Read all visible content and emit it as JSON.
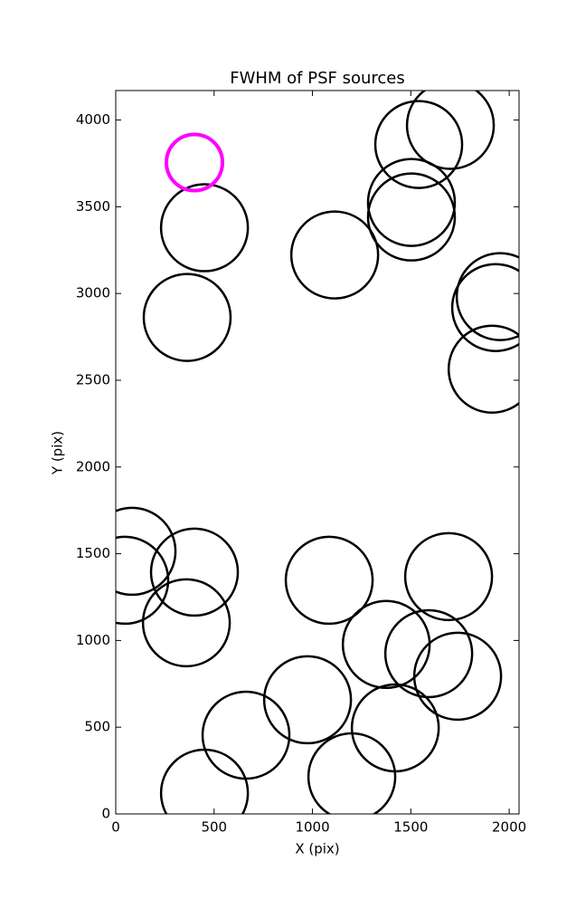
{
  "chart_data": {
    "type": "scatter",
    "title": "FWHM of PSF sources",
    "x_label": "X (pix)",
    "y_label": "Y (pix)",
    "xlim": [
      0,
      2050
    ],
    "ylim": [
      0,
      4170
    ],
    "xticks": [
      0,
      500,
      1000,
      1500,
      2000
    ],
    "yticks": [
      0,
      500,
      1000,
      1500,
      2000,
      2500,
      3000,
      3500,
      4000
    ],
    "series": [
      {
        "color": "#000000",
        "x": [
          1540,
          1701,
          1503,
          1503,
          451,
          1113,
          1954,
          1931,
          363,
          1913,
          83,
          46,
          400,
          1085,
          1692,
          359,
          1375,
          1591,
          1738,
          975,
          662,
          1421,
          451,
          1200
        ],
        "values": [
          3859,
          3969,
          3525,
          3441,
          3379,
          3222,
          2982,
          2919,
          2862,
          2564,
          1514,
          1347,
          1394,
          1347,
          1368,
          1102,
          977,
          924,
          794,
          658,
          454,
          496,
          120,
          214
        ],
        "sizes": [
          48,
          48,
          48,
          48,
          48,
          48,
          48,
          48,
          48,
          48,
          48,
          48,
          48,
          48,
          48,
          48,
          48,
          48,
          48,
          48,
          48,
          48,
          48,
          48
        ]
      },
      {
        "color": "#ff00ff",
        "x": [
          400
        ],
        "values": [
          3755
        ],
        "sizes": [
          31
        ]
      }
    ]
  }
}
